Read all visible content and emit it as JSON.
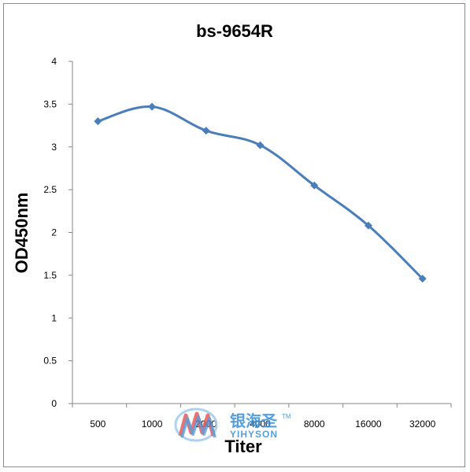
{
  "chart_data": {
    "type": "line",
    "title": "bs-9654R",
    "xlabel": "Titer",
    "ylabel": "OD450nm",
    "categories": [
      "500",
      "1000",
      "2000",
      "4000",
      "8000",
      "16000",
      "32000"
    ],
    "series": [
      {
        "values": [
          3.3,
          3.47,
          3.19,
          3.02,
          2.55,
          2.08,
          1.46
        ]
      }
    ],
    "ylim": [
      0,
      4
    ],
    "yticks": [
      "0",
      "0.5",
      "1",
      "1.5",
      "2",
      "2.5",
      "3",
      "3.5",
      "4"
    ],
    "grid": false,
    "legend": "none",
    "line_color": "#4a7ebb"
  },
  "watermark": {
    "chinese": "银海圣",
    "english": "YIHYSON",
    "tm": "TM"
  }
}
